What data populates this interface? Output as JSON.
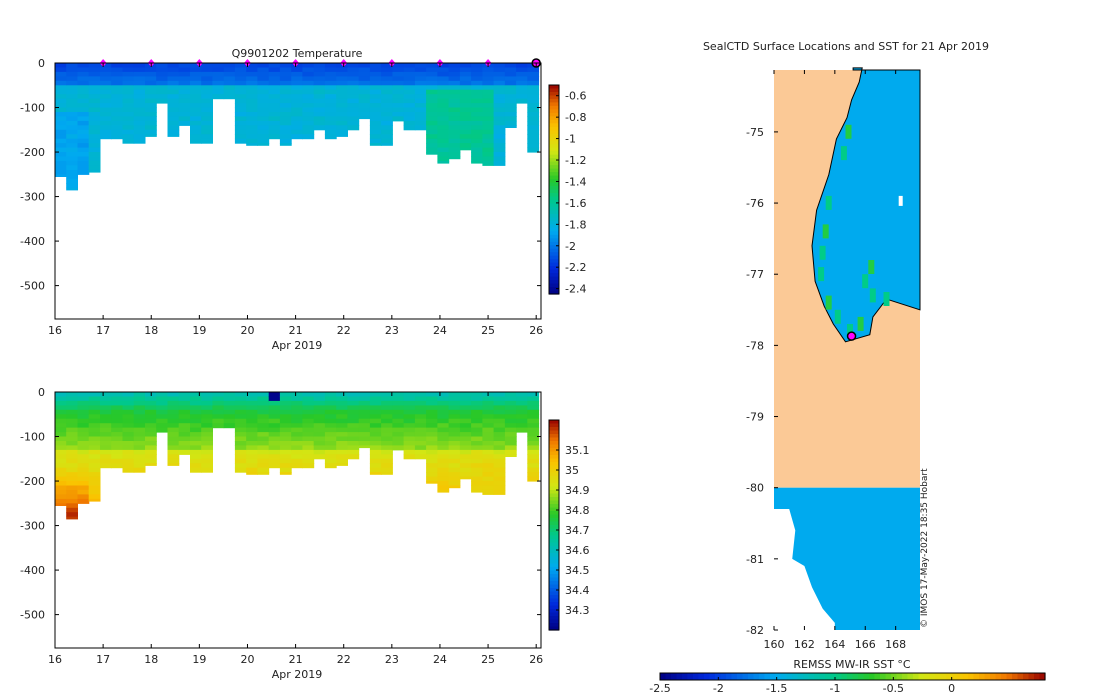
{
  "figure": {
    "watermark": "© IMOS 17-May-2022 18:35 Hobart"
  },
  "chart_data": [
    {
      "id": "temperature-section",
      "type": "heatmap",
      "title": "Q9901202  Temperature",
      "xlabel": "Apr 2019",
      "ylabel": "",
      "xlim": [
        16,
        26.1
      ],
      "ylim": [
        -575,
        0
      ],
      "xticks": [
        16,
        17,
        18,
        19,
        20,
        21,
        22,
        23,
        24,
        25,
        26
      ],
      "yticks": [
        0,
        -100,
        -200,
        -300,
        -400,
        -500
      ],
      "surface_markers_x": [
        17,
        18,
        19,
        20,
        21,
        22,
        23,
        24,
        25
      ],
      "last_profile_x": 26,
      "colorbar": {
        "min": -2.45,
        "max": -0.5,
        "ticks": [
          -0.6,
          -0.8,
          -1,
          -1.2,
          -1.4,
          -1.6,
          -1.8,
          -2,
          -2.2,
          -2.4
        ],
        "tick_labels": [
          "-0.6",
          "-0.8",
          "-1",
          "-1.2",
          "-1.4",
          "-1.6",
          "-1.8",
          "-2",
          "-2.2",
          "-2.4"
        ]
      },
      "profile_depths": [
        -255,
        -285,
        -250,
        -245,
        -170,
        -170,
        -180,
        -180,
        -165,
        -90,
        -165,
        -140,
        -180,
        -180,
        -80,
        -80,
        -180,
        -185,
        -185,
        -170,
        -185,
        -170,
        -170,
        -150,
        -170,
        -165,
        -150,
        -125,
        -185,
        -185,
        -130,
        -150,
        -150,
        -205,
        -225,
        -215,
        -195,
        -225,
        -230,
        -230,
        -145,
        -90,
        -200
      ]
    },
    {
      "id": "salinity-section",
      "type": "heatmap",
      "title": "",
      "xlabel": "Apr 2019",
      "ylabel": "",
      "xlim": [
        16,
        26.1
      ],
      "ylim": [
        -575,
        0
      ],
      "xticks": [
        16,
        17,
        18,
        19,
        20,
        21,
        22,
        23,
        24,
        25,
        26
      ],
      "yticks": [
        0,
        -100,
        -200,
        -300,
        -400,
        -500
      ],
      "colorbar": {
        "min": 34.2,
        "max": 35.25,
        "ticks": [
          35.1,
          35,
          34.9,
          34.8,
          34.7,
          34.6,
          34.5,
          34.4,
          34.3
        ],
        "tick_labels": [
          "35.1",
          "35",
          "34.9",
          "34.8",
          "34.7",
          "34.6",
          "34.5",
          "34.4",
          "34.3"
        ]
      },
      "profile_depths": [
        -255,
        -285,
        -250,
        -245,
        -170,
        -170,
        -180,
        -180,
        -165,
        -90,
        -165,
        -140,
        -180,
        -180,
        -80,
        -80,
        -180,
        -185,
        -185,
        -170,
        -185,
        -170,
        -170,
        -150,
        -170,
        -165,
        -150,
        -125,
        -185,
        -185,
        -130,
        -150,
        -150,
        -205,
        -225,
        -215,
        -195,
        -225,
        -230,
        -230,
        -145,
        -90,
        -200
      ]
    },
    {
      "id": "sst-map",
      "type": "heatmap",
      "title": "SealCTD Surface Locations and SST for 21 Apr 2019",
      "xlabel": "",
      "ylabel": "",
      "xlim": [
        160,
        170
      ],
      "ylim": [
        -82,
        -74
      ],
      "xticks": [
        160,
        162,
        164,
        166,
        168
      ],
      "yticks": [
        -75,
        -76,
        -77,
        -78,
        -79,
        -80,
        -81,
        -82
      ],
      "surface_location": {
        "lon": 165.1,
        "lat": -77.87
      },
      "colorbar": {
        "label": "REMSS MW-IR SST °C",
        "min": -2.5,
        "max": 0.8,
        "ticks": [
          -2.5,
          -2,
          -1.5,
          -1,
          -0.5,
          0
        ],
        "tick_labels": [
          "-2.5",
          "-2",
          "-1.5",
          "-1",
          "-0.5",
          "0"
        ]
      }
    }
  ]
}
